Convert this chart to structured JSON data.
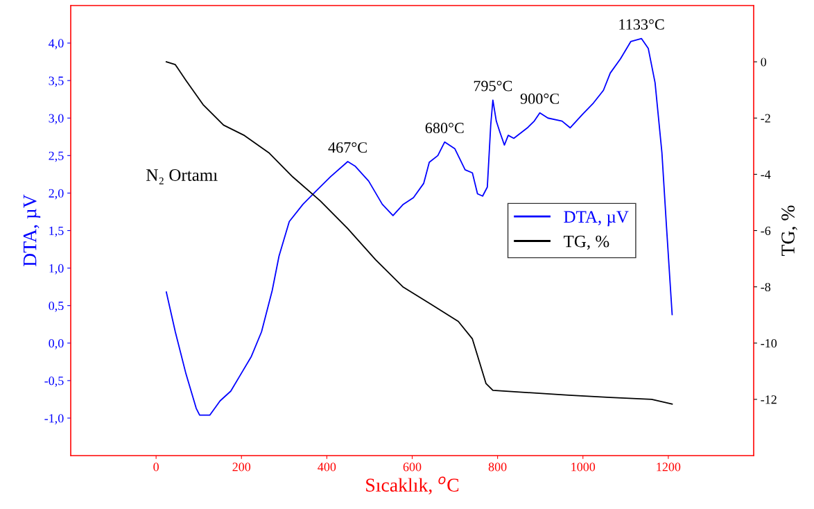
{
  "chart_data": {
    "type": "line",
    "xlabel": "Sıcaklık, $^{o}$C",
    "ylabel": "DTA, µV",
    "y2label": "TG, %",
    "xlim": [
      -200,
      1400
    ],
    "xticks": [
      0,
      200,
      400,
      600,
      800,
      1000,
      1200
    ],
    "ylim": [
      -1.5,
      4.5
    ],
    "yticks": [
      {
        "value": -1.0,
        "label": "-1,0"
      },
      {
        "value": -0.5,
        "label": "-0,5"
      },
      {
        "value": 0.0,
        "label": "0,0"
      },
      {
        "value": 0.5,
        "label": "0,5"
      },
      {
        "value": 1.0,
        "label": "1,0"
      },
      {
        "value": 1.5,
        "label": "1,5"
      },
      {
        "value": 2.0,
        "label": "2,0"
      },
      {
        "value": 2.5,
        "label": "2,5"
      },
      {
        "value": 3.0,
        "label": "3,0"
      },
      {
        "value": 3.5,
        "label": "3,5"
      },
      {
        "value": 4.0,
        "label": "4,0"
      }
    ],
    "y2lim": [
      -14,
      2
    ],
    "y2ticks": [
      -12,
      -10,
      -8,
      -6,
      -4,
      -2,
      0
    ],
    "grid": false,
    "legend": "center right",
    "marker": "none",
    "line_style": "solid",
    "series": [
      {
        "name": "DTA, µV",
        "color": "#0000ff",
        "x": [
          24,
          45,
          70,
          94,
          102,
          126,
          150,
          175,
          199,
          223,
          247,
          272,
          288,
          312,
          344,
          377,
          409,
          449,
          466,
          498,
          530,
          555,
          579,
          603,
          627,
          640,
          660,
          676,
          700,
          724,
          741,
          753,
          765,
          776,
          784,
          789,
          797,
          805,
          816,
          825,
          838,
          870,
          886,
          899,
          918,
          951,
          970,
          999,
          1023,
          1048,
          1064,
          1088,
          1112,
          1137,
          1153,
          1169,
          1185,
          1196,
          1209
        ],
        "values": [
          0.68,
          0.15,
          -0.41,
          -0.87,
          -0.96,
          -0.96,
          -0.77,
          -0.64,
          -0.41,
          -0.18,
          0.15,
          0.7,
          1.16,
          1.62,
          1.85,
          2.04,
          2.22,
          2.42,
          2.36,
          2.16,
          1.85,
          1.7,
          1.85,
          1.94,
          2.13,
          2.41,
          2.5,
          2.68,
          2.59,
          2.31,
          2.27,
          1.99,
          1.96,
          2.08,
          2.91,
          3.24,
          2.96,
          2.82,
          2.64,
          2.77,
          2.73,
          2.87,
          2.96,
          3.07,
          3.0,
          2.96,
          2.87,
          3.05,
          3.19,
          3.37,
          3.6,
          3.79,
          4.02,
          4.06,
          3.93,
          3.47,
          2.54,
          1.53,
          0.38
        ]
      },
      {
        "name": "TG, %",
        "color": "#000000",
        "axis": "y2",
        "x": [
          24,
          45,
          70,
          110,
          158,
          207,
          264,
          320,
          385,
          449,
          514,
          579,
          644,
          708,
          741,
          773,
          789,
          870,
          967,
          1064,
          1161,
          1209
        ],
        "values": [
          0,
          -0.1,
          -0.66,
          -1.52,
          -2.25,
          -2.62,
          -3.23,
          -4.09,
          -4.95,
          -5.93,
          -7.03,
          -8.01,
          -8.62,
          -9.23,
          -9.85,
          -11.44,
          -11.68,
          -11.76,
          -11.85,
          -11.93,
          -12.0,
          -12.17
        ]
      }
    ],
    "annotations": [
      {
        "text": "467°C",
        "x": 449,
        "y": 2.42
      },
      {
        "text": "680°C",
        "x": 676,
        "y": 2.68
      },
      {
        "text": "795°C",
        "x": 789,
        "y": 3.24
      },
      {
        "text": "900°C",
        "x": 899,
        "y": 3.07
      },
      {
        "text": "1133°C",
        "x": 1137,
        "y": 4.06
      },
      "N₂ Ortamı"
    ]
  }
}
